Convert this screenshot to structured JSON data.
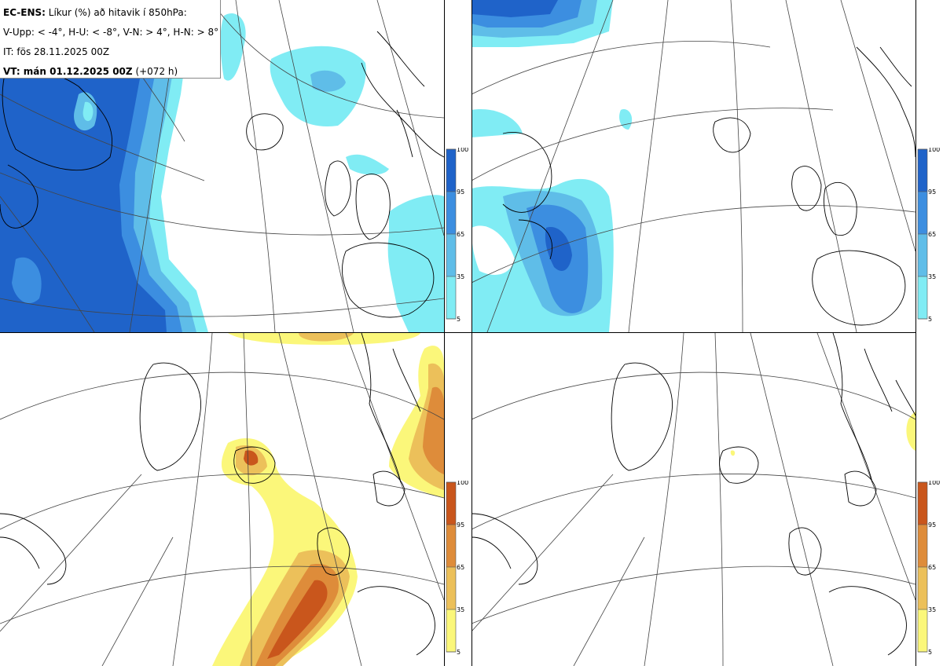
{
  "header": {
    "model": "EC-ENS:",
    "title_rest": "Líkur (%) að hitavik í 850hPa:",
    "thresholds": "V-Upp: < -4°, H-U: < -8°, V-N: > 4°, H-N: > 8°",
    "init_time": "IT: fös 28.11.2025 00Z",
    "valid_label": "VT: mán 01.12.2025 00Z",
    "valid_offset": "(+072 h)"
  },
  "panels": [
    {
      "name": "cold-4",
      "scheme": "blue"
    },
    {
      "name": "cold-8",
      "scheme": "blue"
    },
    {
      "name": "warm-4",
      "scheme": "orange"
    },
    {
      "name": "warm-8",
      "scheme": "orange"
    }
  ],
  "colorbar": {
    "ticks": [
      "100",
      "95",
      "65",
      "35",
      "5"
    ],
    "blue": [
      "#1f63c9",
      "#3c8ee0",
      "#5fbde8",
      "#80ecf4"
    ],
    "orange": [
      "#c9561c",
      "#de8c3a",
      "#ecc05a",
      "#fbf77a"
    ]
  }
}
